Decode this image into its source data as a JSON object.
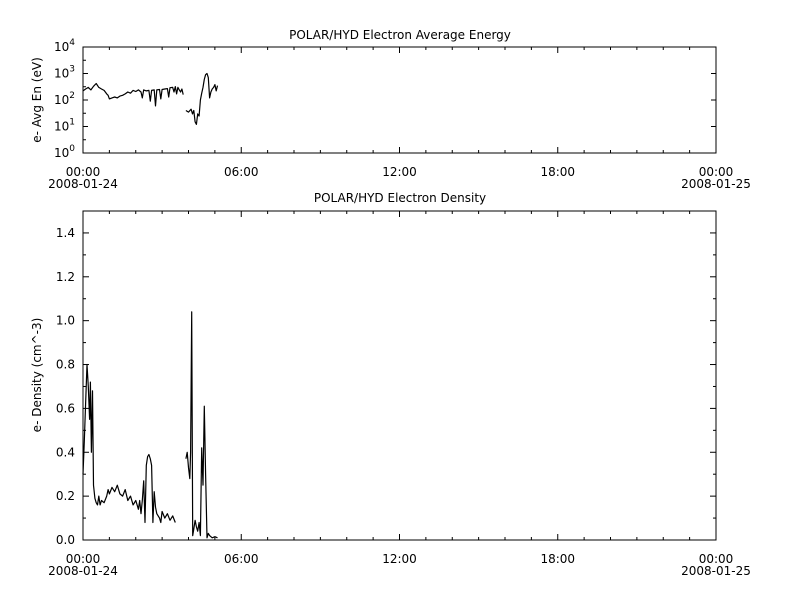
{
  "chart_data": [
    {
      "type": "line",
      "title": "POLAR/HYD  Electron Average Energy",
      "ylabel": "e- Avg En (eV)",
      "yscale": "log",
      "ylim": [
        1,
        10000
      ],
      "yticks": [
        {
          "base": "10",
          "exp": "0",
          "value": 1
        },
        {
          "base": "10",
          "exp": "1",
          "value": 10
        },
        {
          "base": "10",
          "exp": "2",
          "value": 100
        },
        {
          "base": "10",
          "exp": "3",
          "value": 1000
        },
        {
          "base": "10",
          "exp": "4",
          "value": 10000
        }
      ],
      "xlim": [
        0,
        24
      ],
      "xticks": [
        {
          "label": "00:00",
          "date": "2008-01-24",
          "value": 0
        },
        {
          "label": "06:00",
          "date": "",
          "value": 6
        },
        {
          "label": "12:00",
          "date": "",
          "value": 12
        },
        {
          "label": "18:00",
          "date": "",
          "value": 18
        },
        {
          "label": "00:00",
          "date": "2008-01-25",
          "value": 24
        }
      ],
      "series": [
        {
          "segments": [
            [
              [
                0.0,
                220
              ],
              [
                0.1,
                260
              ],
              [
                0.2,
                300
              ],
              [
                0.3,
                240
              ],
              [
                0.4,
                330
              ],
              [
                0.5,
                420
              ],
              [
                0.6,
                300
              ],
              [
                0.7,
                260
              ],
              [
                0.8,
                230
              ],
              [
                0.9,
                170
              ],
              [
                0.95,
                150
              ],
              [
                1.0,
                110
              ],
              [
                1.1,
                120
              ],
              [
                1.2,
                130
              ],
              [
                1.3,
                120
              ],
              [
                1.4,
                140
              ],
              [
                1.5,
                150
              ],
              [
                1.6,
                170
              ],
              [
                1.7,
                200
              ],
              [
                1.8,
                180
              ],
              [
                1.9,
                230
              ],
              [
                2.0,
                210
              ],
              [
                2.1,
                240
              ],
              [
                2.2,
                200
              ],
              [
                2.25,
                120
              ],
              [
                2.3,
                240
              ],
              [
                2.4,
                220
              ],
              [
                2.5,
                230
              ],
              [
                2.55,
                90
              ],
              [
                2.6,
                230
              ],
              [
                2.7,
                240
              ],
              [
                2.75,
                60
              ],
              [
                2.8,
                240
              ],
              [
                2.9,
                250
              ],
              [
                2.95,
                110
              ],
              [
                3.0,
                250
              ],
              [
                3.1,
                260
              ],
              [
                3.2,
                270
              ],
              [
                3.25,
                130
              ],
              [
                3.3,
                290
              ],
              [
                3.4,
                300
              ],
              [
                3.45,
                200
              ],
              [
                3.5,
                320
              ],
              [
                3.55,
                170
              ],
              [
                3.6,
                300
              ],
              [
                3.65,
                240
              ],
              [
                3.7,
                200
              ],
              [
                3.75,
                260
              ],
              [
                3.8,
                160
              ]
            ],
            [
              [
                3.9,
                40
              ],
              [
                4.0,
                35
              ],
              [
                4.1,
                45
              ],
              [
                4.15,
                30
              ],
              [
                4.2,
                40
              ],
              [
                4.25,
                15
              ],
              [
                4.3,
                12
              ],
              [
                4.35,
                30
              ],
              [
                4.4,
                25
              ],
              [
                4.45,
                100
              ],
              [
                4.5,
                180
              ],
              [
                4.55,
                300
              ],
              [
                4.6,
                600
              ],
              [
                4.65,
                900
              ],
              [
                4.7,
                1000
              ],
              [
                4.75,
                700
              ],
              [
                4.8,
                120
              ],
              [
                4.85,
                200
              ],
              [
                4.9,
                260
              ],
              [
                4.95,
                300
              ],
              [
                5.0,
                380
              ],
              [
                5.05,
                220
              ],
              [
                5.1,
                350
              ]
            ]
          ]
        }
      ]
    },
    {
      "type": "line",
      "title": "POLAR/HYD  Electron Density",
      "ylabel": "e- Density (cm^-3)",
      "ylim": [
        0,
        1.5
      ],
      "yticks": [
        "0.0",
        "0.2",
        "0.4",
        "0.6",
        "0.8",
        "1.0",
        "1.2",
        "1.4"
      ],
      "xlim": [
        0,
        24
      ],
      "xticks": [
        {
          "label": "00:00",
          "date": "2008-01-24",
          "value": 0
        },
        {
          "label": "06:00",
          "date": "",
          "value": 6
        },
        {
          "label": "12:00",
          "date": "",
          "value": 12
        },
        {
          "label": "18:00",
          "date": "",
          "value": 18
        },
        {
          "label": "00:00",
          "date": "2008-01-25",
          "value": 24
        }
      ],
      "series": [
        {
          "segments": [
            [
              [
                0.0,
                0.3
              ],
              [
                0.05,
                0.45
              ],
              [
                0.1,
                0.62
              ],
              [
                0.15,
                0.8
              ],
              [
                0.2,
                0.7
              ],
              [
                0.25,
                0.55
              ],
              [
                0.28,
                0.72
              ],
              [
                0.32,
                0.4
              ],
              [
                0.36,
                0.68
              ],
              [
                0.4,
                0.25
              ],
              [
                0.45,
                0.19
              ],
              [
                0.5,
                0.17
              ],
              [
                0.55,
                0.16
              ],
              [
                0.6,
                0.2
              ],
              [
                0.65,
                0.16
              ],
              [
                0.7,
                0.18
              ],
              [
                0.8,
                0.17
              ],
              [
                0.9,
                0.2
              ],
              [
                0.95,
                0.23
              ],
              [
                1.0,
                0.21
              ],
              [
                1.1,
                0.24
              ],
              [
                1.2,
                0.22
              ],
              [
                1.3,
                0.25
              ],
              [
                1.4,
                0.21
              ],
              [
                1.5,
                0.2
              ],
              [
                1.6,
                0.23
              ],
              [
                1.7,
                0.18
              ],
              [
                1.8,
                0.2
              ],
              [
                1.9,
                0.16
              ],
              [
                2.0,
                0.18
              ],
              [
                2.1,
                0.14
              ],
              [
                2.15,
                0.18
              ],
              [
                2.2,
                0.12
              ],
              [
                2.25,
                0.18
              ],
              [
                2.3,
                0.27
              ],
              [
                2.35,
                0.08
              ],
              [
                2.4,
                0.34
              ],
              [
                2.45,
                0.38
              ],
              [
                2.5,
                0.39
              ],
              [
                2.55,
                0.37
              ],
              [
                2.6,
                0.34
              ],
              [
                2.65,
                0.08
              ],
              [
                2.7,
                0.22
              ],
              [
                2.75,
                0.15
              ],
              [
                2.8,
                0.12
              ],
              [
                2.9,
                0.1
              ],
              [
                2.95,
                0.08
              ],
              [
                3.0,
                0.13
              ],
              [
                3.1,
                0.1
              ],
              [
                3.2,
                0.12
              ],
              [
                3.3,
                0.09
              ],
              [
                3.4,
                0.11
              ],
              [
                3.5,
                0.08
              ]
            ],
            [
              [
                3.9,
                0.37
              ],
              [
                3.95,
                0.4
              ],
              [
                4.0,
                0.33
              ],
              [
                4.05,
                0.28
              ],
              [
                4.08,
                0.4
              ],
              [
                4.12,
                1.04
              ],
              [
                4.16,
                0.02
              ],
              [
                4.2,
                0.05
              ],
              [
                4.25,
                0.09
              ],
              [
                4.3,
                0.06
              ],
              [
                4.35,
                0.04
              ],
              [
                4.4,
                0.08
              ],
              [
                4.45,
                0.02
              ],
              [
                4.5,
                0.42
              ],
              [
                4.55,
                0.25
              ],
              [
                4.6,
                0.61
              ],
              [
                4.65,
                0.3
              ],
              [
                4.7,
                0.01
              ],
              [
                4.75,
                0.03
              ],
              [
                4.8,
                0.02
              ],
              [
                4.9,
                0.01
              ],
              [
                5.0,
                0.015
              ],
              [
                5.1,
                0.01
              ]
            ]
          ]
        }
      ]
    }
  ]
}
